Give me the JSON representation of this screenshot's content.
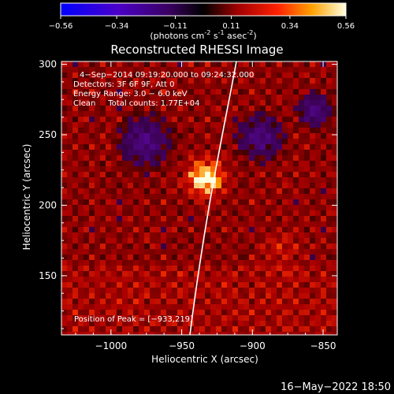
{
  "colorbar": {
    "ticks": [
      "-0.56",
      "-0.34",
      "-0.11",
      "0.11",
      "0.34",
      "0.56"
    ],
    "units": "(photons cm",
    "units_sup1": "-2",
    "units_mid": " s",
    "units_sup2": "-1",
    "units_end": " asec",
    "units_sup3": "-2",
    "units_close": ")",
    "min": -0.56,
    "max": 0.56
  },
  "chart_data": {
    "type": "heatmap",
    "title": "Reconstructed RHESSI Image",
    "xlabel": "Heliocentric X (arcsec)",
    "ylabel": "Heliocentric Y (arcsec)",
    "xlim": [
      -1035,
      -840
    ],
    "ylim": [
      108,
      302
    ],
    "x_ticks": [
      {
        "v": -1000,
        "t": "−1000"
      },
      {
        "v": -950,
        "t": "−950"
      },
      {
        "v": -900,
        "t": "−900"
      },
      {
        "v": -850,
        "t": "−850"
      }
    ],
    "y_ticks": [
      {
        "v": 150,
        "t": "150"
      },
      {
        "v": 200,
        "t": "200"
      },
      {
        "v": 250,
        "t": "250"
      },
      {
        "v": 300,
        "t": "300"
      }
    ],
    "peak": {
      "x": -933,
      "y": 219
    },
    "annotations": [
      "4−Sep−2014 09:19:20.000 to 09:24:32.000",
      "Detectors: 3F 6F 9F, Att 0",
      "Energy Range: 3.0 − 6.0 keV",
      "Clean     Total counts: 1.77E+04"
    ],
    "peak_label": "Position of Peak = [−933,219]"
  },
  "footer": {
    "timestamp": "16−May−2022 18:50"
  }
}
